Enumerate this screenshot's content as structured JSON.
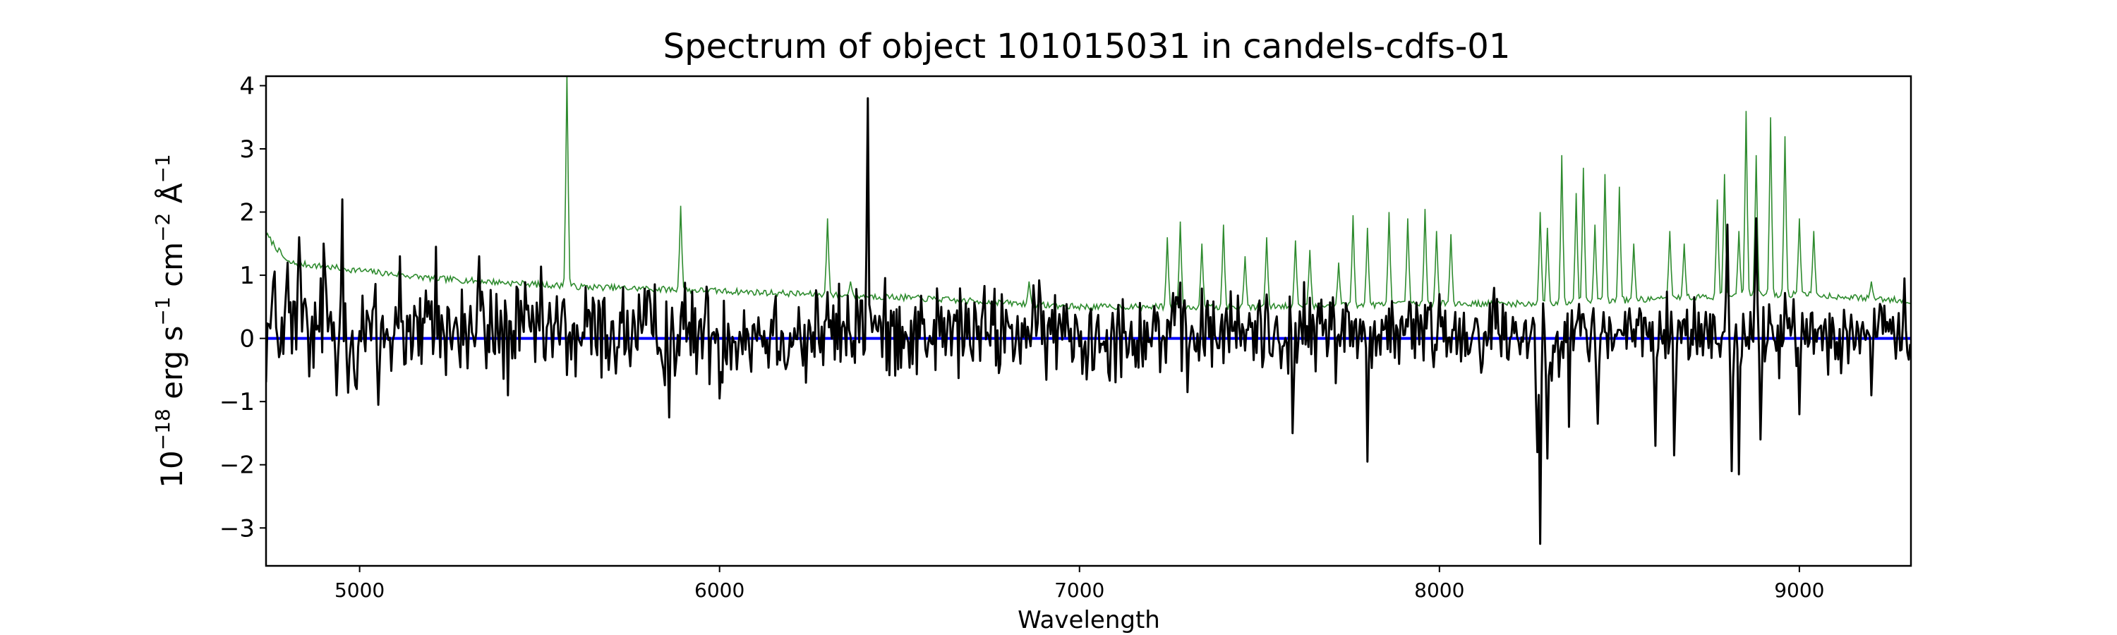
{
  "chart_data": {
    "type": "line",
    "title": "Spectrum of object 101015031 in candels-cdfs-01",
    "xlabel": "Wavelength",
    "ylabel": {
      "base": "10",
      "base_exp": "−18",
      "unit1": " erg s",
      "unit1_exp": "−1",
      "unit2": " cm",
      "unit2_exp": "−2",
      "unit3": " Å",
      "unit3_exp": "−1"
    },
    "xlim": [
      4740,
      9310
    ],
    "ylim": [
      -3.6,
      4.15
    ],
    "x_ticks": [
      5000,
      6000,
      7000,
      8000,
      9000
    ],
    "x_tick_labels": [
      "5000",
      "6000",
      "7000",
      "8000",
      "9000"
    ],
    "y_ticks": [
      -3,
      -2,
      -1,
      0,
      1,
      2,
      3,
      4
    ],
    "y_tick_labels": [
      "−3",
      "−2",
      "−1",
      "0",
      "1",
      "2",
      "3",
      "4"
    ],
    "grid": false,
    "series": [
      {
        "color": "#000000",
        "line_width": 3,
        "baseline": 0.1,
        "noise_start": 0.75,
        "noise_end": 0.45,
        "features": [
          [
            4760,
            0.9
          ],
          [
            4780,
            -0.2
          ],
          [
            4800,
            1.2
          ],
          [
            4830,
            1.6
          ],
          [
            4860,
            -0.6
          ],
          [
            4900,
            1.5
          ],
          [
            4935,
            -0.9
          ],
          [
            4950,
            2.2
          ],
          [
            4990,
            -0.8
          ],
          [
            5050,
            -1.05
          ],
          [
            5110,
            1.3
          ],
          [
            5210,
            1.45
          ],
          [
            5330,
            1.3
          ],
          [
            5410,
            -0.9
          ],
          [
            5600,
            -0.6
          ],
          [
            5860,
            -1.25
          ],
          [
            6000,
            -0.95
          ],
          [
            6240,
            -0.7
          ],
          [
            6390,
            0.6
          ],
          [
            6410,
            3.8
          ],
          [
            6500,
            0.5
          ],
          [
            7020,
            -0.65
          ],
          [
            7300,
            -0.85
          ],
          [
            7500,
            0.6
          ],
          [
            7590,
            -1.5
          ],
          [
            7705,
            0.65
          ],
          [
            7800,
            -1.95
          ],
          [
            8000,
            0.7
          ],
          [
            8150,
            0.8
          ],
          [
            8270,
            -1.8
          ],
          [
            8280,
            -3.25
          ],
          [
            8300,
            -1.9
          ],
          [
            8360,
            -1.4
          ],
          [
            8440,
            -1.35
          ],
          [
            8600,
            -1.7
          ],
          [
            8650,
            -1.85
          ],
          [
            8800,
            1.8
          ],
          [
            8810,
            -2.1
          ],
          [
            8830,
            -2.15
          ],
          [
            8880,
            1.9
          ],
          [
            8890,
            -1.6
          ],
          [
            9000,
            -1.2
          ],
          [
            9200,
            -0.9
          ],
          [
            9290,
            0.95
          ]
        ]
      },
      {
        "color": "#2e8b2e",
        "line_width": 1.6,
        "continuum": [
          [
            4740,
            1.65
          ],
          [
            4800,
            1.2
          ],
          [
            5200,
            0.95
          ],
          [
            5600,
            0.82
          ],
          [
            6000,
            0.75
          ],
          [
            6500,
            0.65
          ],
          [
            7000,
            0.5
          ],
          [
            7500,
            0.5
          ],
          [
            8000,
            0.55
          ],
          [
            8300,
            0.55
          ],
          [
            8700,
            0.65
          ],
          [
            9000,
            0.7
          ],
          [
            9300,
            0.6
          ]
        ],
        "noise": 0.05,
        "lines": [
          [
            5577,
            4.2
          ],
          [
            5893,
            2.1
          ],
          [
            6300,
            1.9
          ],
          [
            6364,
            0.9
          ],
          [
            6860,
            0.9
          ],
          [
            7245,
            1.6
          ],
          [
            7280,
            1.85
          ],
          [
            7340,
            1.5
          ],
          [
            7400,
            1.8
          ],
          [
            7460,
            1.3
          ],
          [
            7520,
            1.6
          ],
          [
            7600,
            1.55
          ],
          [
            7640,
            1.4
          ],
          [
            7720,
            1.2
          ],
          [
            7760,
            1.95
          ],
          [
            7800,
            1.75
          ],
          [
            7860,
            2.0
          ],
          [
            7910,
            1.9
          ],
          [
            7960,
            2.05
          ],
          [
            7990,
            1.7
          ],
          [
            8030,
            1.65
          ],
          [
            8280,
            2.0
          ],
          [
            8300,
            1.75
          ],
          [
            8340,
            2.9
          ],
          [
            8380,
            2.3
          ],
          [
            8400,
            2.7
          ],
          [
            8430,
            1.8
          ],
          [
            8460,
            2.6
          ],
          [
            8500,
            2.4
          ],
          [
            8540,
            1.5
          ],
          [
            8640,
            1.7
          ],
          [
            8680,
            1.5
          ],
          [
            8770,
            2.2
          ],
          [
            8790,
            2.6
          ],
          [
            8830,
            1.7
          ],
          [
            8850,
            3.6
          ],
          [
            8880,
            2.9
          ],
          [
            8920,
            3.5
          ],
          [
            8960,
            3.2
          ],
          [
            9000,
            1.9
          ],
          [
            9040,
            1.7
          ],
          [
            9200,
            0.9
          ]
        ]
      },
      {
        "color": "#0000ff",
        "line_width": 4,
        "x": [
          4740,
          9310
        ],
        "y": [
          0,
          0
        ]
      }
    ]
  }
}
